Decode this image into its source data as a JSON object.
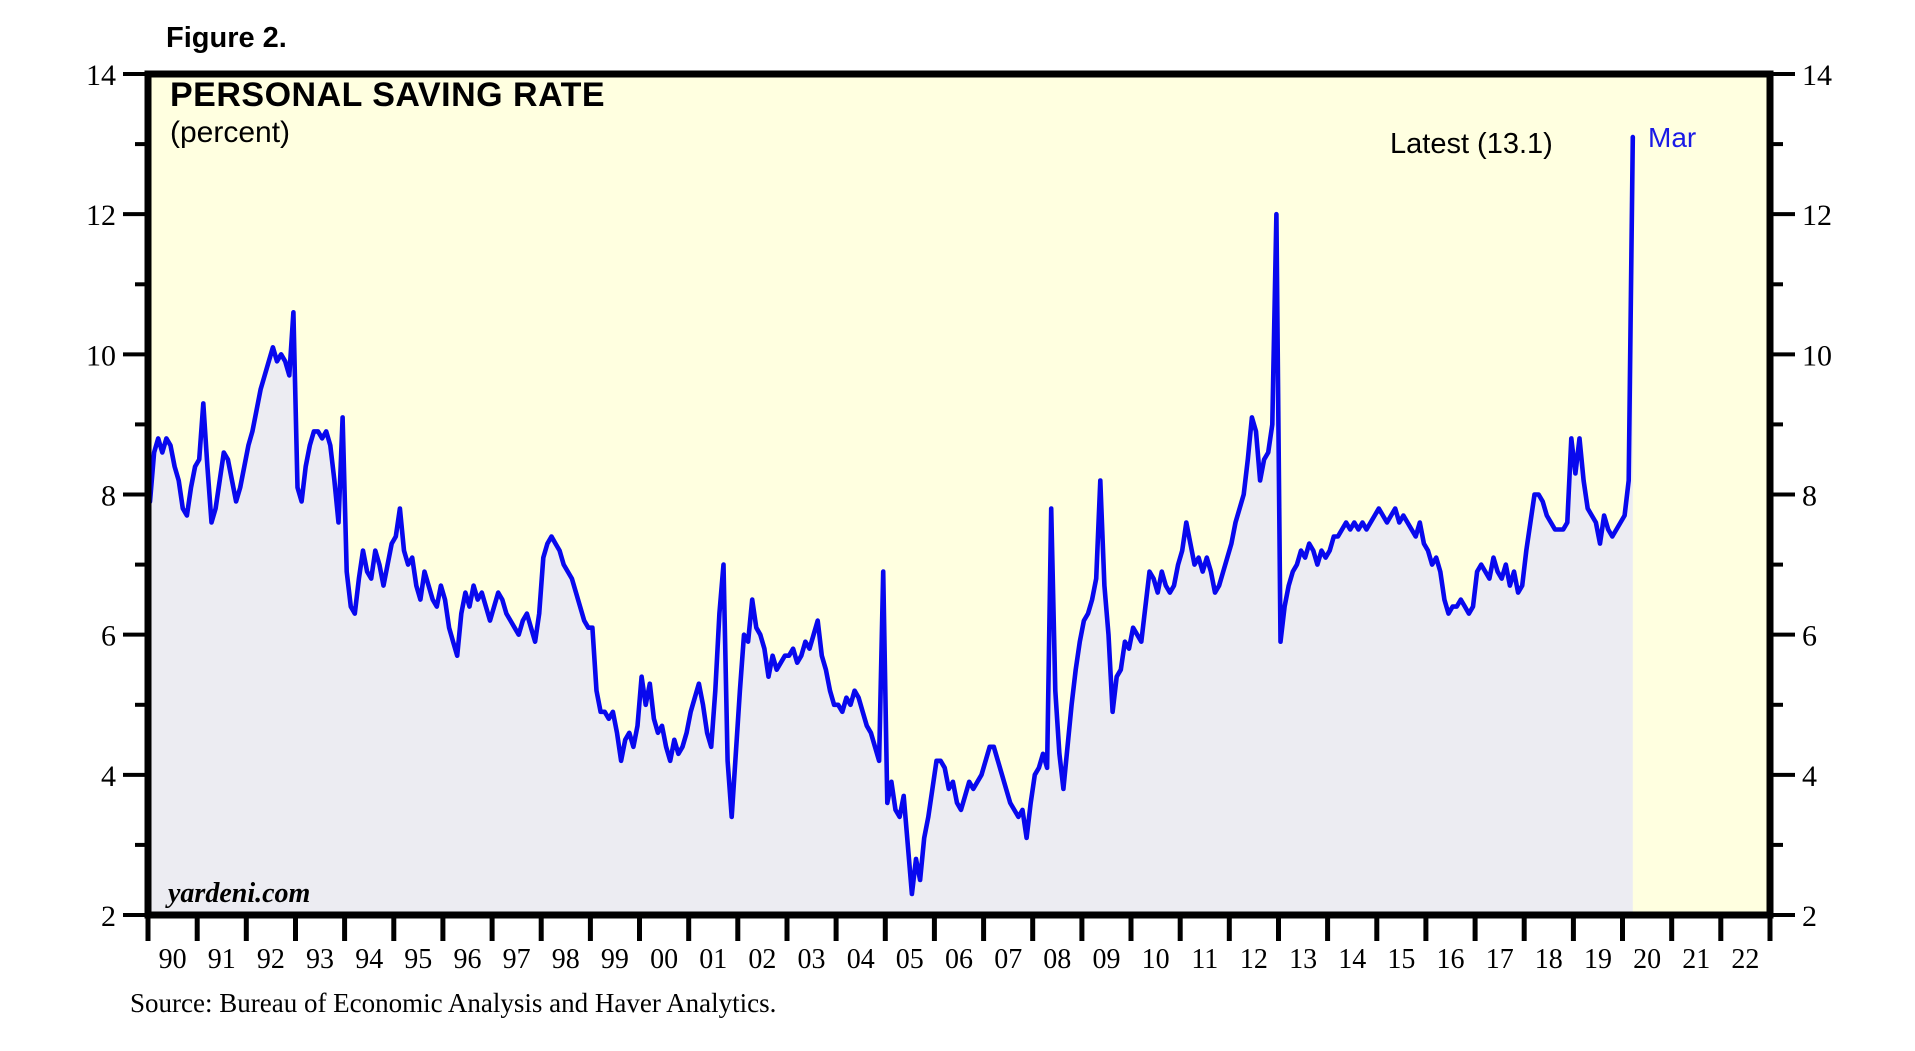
{
  "figure_label": "Figure 2.",
  "chart": {
    "title": "PERSONAL SAVING RATE",
    "subtitle": "(percent)",
    "latest_label": "Latest (13.1)",
    "latest_month_label": "Mar",
    "watermark": "yardeni.com"
  },
  "source_note": "Source: Bureau of Economic Analysis and Haver Analytics.",
  "colors": {
    "plot_background": "#FFFFE0",
    "area_fill": "#ECECF2",
    "line": "#0808EE",
    "annotation_blue": "#1A1AE6",
    "frame": "#000000",
    "text": "#000000"
  },
  "chart_data": {
    "type": "line",
    "series_name": "Personal saving rate, percent, monthly",
    "frequency": "monthly",
    "start": "1990-01",
    "end": "2020-03",
    "latest_value": 13.1,
    "latest_month": "Mar 2020",
    "ylim": [
      2,
      14
    ],
    "y_ticks_major": [
      2,
      4,
      6,
      8,
      10,
      12,
      14
    ],
    "y_ticks_minor": [
      3,
      5,
      7,
      9,
      11,
      13
    ],
    "x_axis_start_year": 1990,
    "x_axis_end_year": 2023,
    "x_labels": [
      "90",
      "91",
      "92",
      "93",
      "94",
      "95",
      "96",
      "97",
      "98",
      "99",
      "00",
      "01",
      "02",
      "03",
      "04",
      "05",
      "06",
      "07",
      "08",
      "09",
      "10",
      "11",
      "12",
      "13",
      "14",
      "15",
      "16",
      "17",
      "18",
      "19",
      "20",
      "21",
      "22"
    ],
    "grid": false,
    "fill_under_line": true,
    "values": [
      7.9,
      8.6,
      8.8,
      8.6,
      8.8,
      8.7,
      8.4,
      8.2,
      7.8,
      7.7,
      8.1,
      8.4,
      8.5,
      9.3,
      8.4,
      7.6,
      7.8,
      8.2,
      8.6,
      8.5,
      8.2,
      7.9,
      8.1,
      8.4,
      8.7,
      8.9,
      9.2,
      9.5,
      9.7,
      9.9,
      10.1,
      9.9,
      10.0,
      9.9,
      9.7,
      10.6,
      8.1,
      7.9,
      8.4,
      8.7,
      8.9,
      8.9,
      8.8,
      8.9,
      8.7,
      8.2,
      7.6,
      9.1,
      6.9,
      6.4,
      6.3,
      6.8,
      7.2,
      6.9,
      6.8,
      7.2,
      7.0,
      6.7,
      7.0,
      7.3,
      7.4,
      7.8,
      7.2,
      7.0,
      7.1,
      6.7,
      6.5,
      6.9,
      6.7,
      6.5,
      6.4,
      6.7,
      6.5,
      6.1,
      5.9,
      5.7,
      6.3,
      6.6,
      6.4,
      6.7,
      6.5,
      6.6,
      6.4,
      6.2,
      6.4,
      6.6,
      6.5,
      6.3,
      6.2,
      6.1,
      6.0,
      6.2,
      6.3,
      6.1,
      5.9,
      6.3,
      7.1,
      7.3,
      7.4,
      7.3,
      7.2,
      7.0,
      6.9,
      6.8,
      6.6,
      6.4,
      6.2,
      6.1,
      6.1,
      5.2,
      4.9,
      4.9,
      4.8,
      4.9,
      4.6,
      4.2,
      4.5,
      4.6,
      4.4,
      4.7,
      5.4,
      5.0,
      5.3,
      4.8,
      4.6,
      4.7,
      4.4,
      4.2,
      4.5,
      4.3,
      4.4,
      4.6,
      4.9,
      5.1,
      5.3,
      5.0,
      4.6,
      4.4,
      5.2,
      6.3,
      7.0,
      4.2,
      3.4,
      4.3,
      5.2,
      6.0,
      5.9,
      6.5,
      6.1,
      6.0,
      5.8,
      5.4,
      5.7,
      5.5,
      5.6,
      5.7,
      5.7,
      5.8,
      5.6,
      5.7,
      5.9,
      5.8,
      6.0,
      6.2,
      5.7,
      5.5,
      5.2,
      5.0,
      5.0,
      4.9,
      5.1,
      5.0,
      5.2,
      5.1,
      4.9,
      4.7,
      4.6,
      4.4,
      4.2,
      6.9,
      3.6,
      3.9,
      3.5,
      3.4,
      3.7,
      3.0,
      2.3,
      2.8,
      2.5,
      3.1,
      3.4,
      3.8,
      4.2,
      4.2,
      4.1,
      3.8,
      3.9,
      3.6,
      3.5,
      3.7,
      3.9,
      3.8,
      3.9,
      4.0,
      4.2,
      4.4,
      4.4,
      4.2,
      4.0,
      3.8,
      3.6,
      3.5,
      3.4,
      3.5,
      3.1,
      3.6,
      4.0,
      4.1,
      4.3,
      4.1,
      7.8,
      5.2,
      4.3,
      3.8,
      4.4,
      5.0,
      5.5,
      5.9,
      6.2,
      6.3,
      6.5,
      6.8,
      8.2,
      6.7,
      6.0,
      4.9,
      5.4,
      5.5,
      5.9,
      5.8,
      6.1,
      6.0,
      5.9,
      6.4,
      6.9,
      6.8,
      6.6,
      6.9,
      6.7,
      6.6,
      6.7,
      7.0,
      7.2,
      7.6,
      7.3,
      7.0,
      7.1,
      6.9,
      7.1,
      6.9,
      6.6,
      6.7,
      6.9,
      7.1,
      7.3,
      7.6,
      7.8,
      8.0,
      8.5,
      9.1,
      8.9,
      8.2,
      8.5,
      8.6,
      9.0,
      12.0,
      5.9,
      6.4,
      6.7,
      6.9,
      7.0,
      7.2,
      7.1,
      7.3,
      7.2,
      7.0,
      7.2,
      7.1,
      7.2,
      7.4,
      7.4,
      7.5,
      7.6,
      7.5,
      7.6,
      7.5,
      7.6,
      7.5,
      7.6,
      7.7,
      7.8,
      7.7,
      7.6,
      7.7,
      7.8,
      7.6,
      7.7,
      7.6,
      7.5,
      7.4,
      7.6,
      7.3,
      7.2,
      7.0,
      7.1,
      6.9,
      6.5,
      6.3,
      6.4,
      6.4,
      6.5,
      6.4,
      6.3,
      6.4,
      6.9,
      7.0,
      6.9,
      6.8,
      7.1,
      6.9,
      6.8,
      7.0,
      6.7,
      6.9,
      6.6,
      6.7,
      7.2,
      7.6,
      8.0,
      8.0,
      7.9,
      7.7,
      7.6,
      7.5,
      7.5,
      7.5,
      7.6,
      8.8,
      8.3,
      8.8,
      8.2,
      7.8,
      7.7,
      7.6,
      7.3,
      7.7,
      7.5,
      7.4,
      7.5,
      7.6,
      7.7,
      8.2,
      13.1
    ]
  }
}
